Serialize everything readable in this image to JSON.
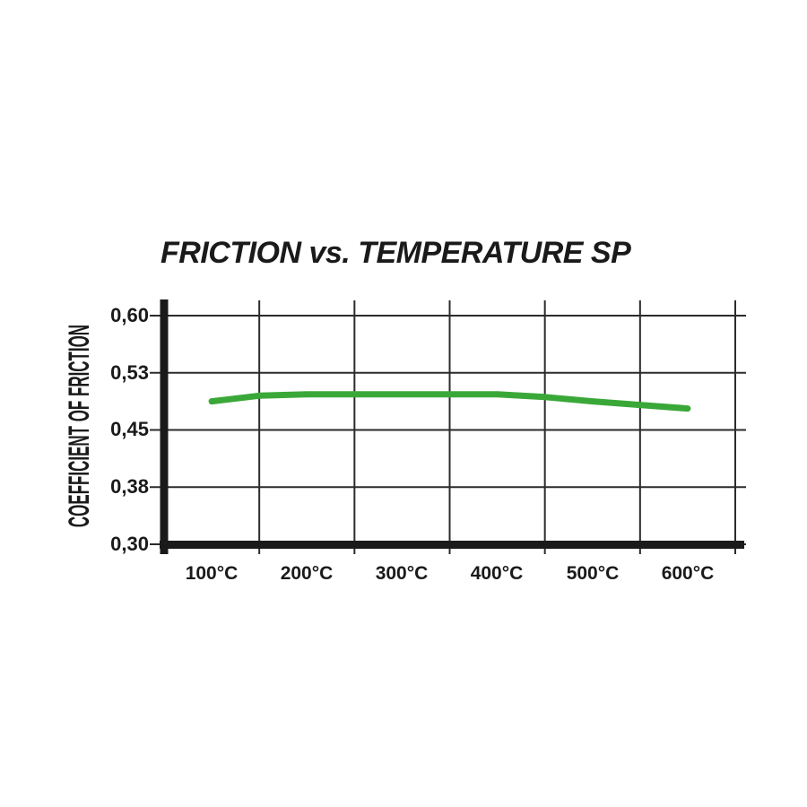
{
  "window": {
    "background": "#ffffff"
  },
  "chart_data": {
    "type": "line",
    "title": "FRICTION vs. TEMPERATURE SP",
    "xlabel": "",
    "ylabel": "COEFFICIENT OF FRICTION",
    "x_unit": "°C",
    "x_tick_labels": [
      "100°C",
      "200°C",
      "300°C",
      "400°C",
      "500°C",
      "600°C"
    ],
    "x_tick_values": [
      100,
      200,
      300,
      400,
      500,
      600
    ],
    "y_tick_labels": [
      "0,60",
      "0,53",
      "0,45",
      "0,38",
      "0,30"
    ],
    "y_tick_values": [
      0.6,
      0.53,
      0.45,
      0.38,
      0.3
    ],
    "xlim": [
      50,
      650
    ],
    "ylim": [
      0.3,
      0.6
    ],
    "grid": true,
    "legend_position": "none",
    "axis_color": "#1a1a1a",
    "grid_color": "#2b2b2b",
    "series": [
      {
        "name": "SP",
        "color": "#3aa838",
        "x": [
          100,
          150,
          200,
          250,
          300,
          350,
          400,
          450,
          500,
          550,
          600
        ],
        "values": [
          0.49,
          0.498,
          0.5,
          0.5,
          0.5,
          0.5,
          0.5,
          0.496,
          0.49,
          0.485,
          0.48
        ]
      }
    ]
  }
}
